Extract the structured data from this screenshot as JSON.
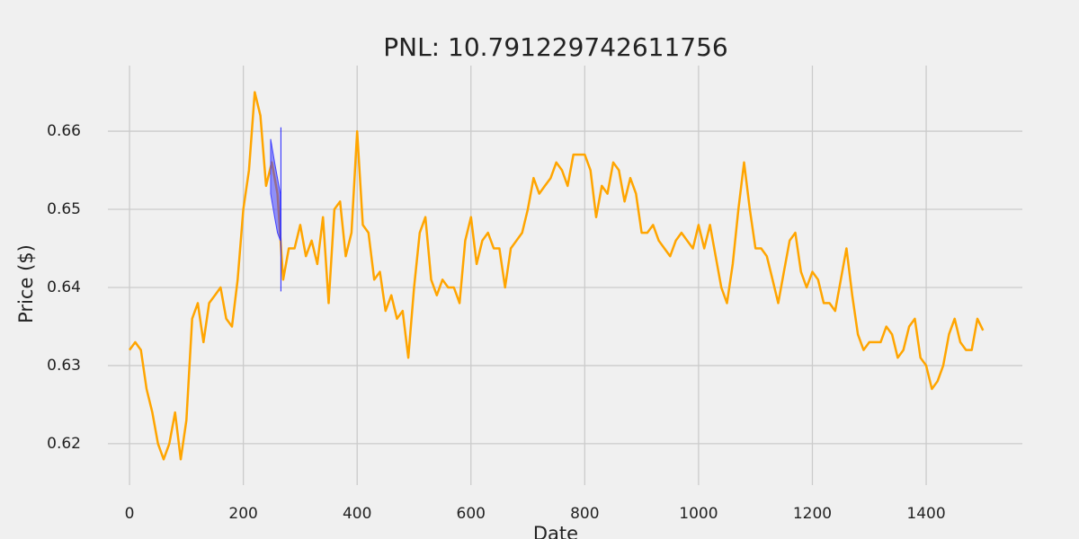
{
  "chart_data": {
    "type": "line",
    "title": "PNL: 10.791229742611756",
    "xlabel": "Date",
    "ylabel": "Price ($)",
    "x": [
      0,
      10,
      20,
      30,
      40,
      50,
      60,
      70,
      80,
      90,
      100,
      110,
      120,
      130,
      140,
      150,
      160,
      170,
      180,
      190,
      200,
      210,
      220,
      230,
      240,
      250,
      260,
      270,
      280,
      290,
      300,
      310,
      320,
      330,
      340,
      350,
      360,
      370,
      380,
      390,
      400,
      410,
      420,
      430,
      440,
      450,
      460,
      470,
      480,
      490,
      500,
      510,
      520,
      530,
      540,
      550,
      560,
      570,
      580,
      590,
      600,
      610,
      620,
      630,
      640,
      650,
      660,
      670,
      680,
      690,
      700,
      710,
      720,
      730,
      740,
      750,
      760,
      770,
      780,
      790,
      800,
      810,
      820,
      830,
      840,
      850,
      860,
      870,
      880,
      890,
      900,
      910,
      920,
      930,
      940,
      950,
      960,
      970,
      980,
      990,
      1000,
      1010,
      1020,
      1030,
      1040,
      1050,
      1060,
      1070,
      1080,
      1090,
      1100,
      1110,
      1120,
      1130,
      1140,
      1150,
      1160,
      1170,
      1180,
      1190,
      1200,
      1210,
      1220,
      1230,
      1240,
      1250,
      1260,
      1270,
      1280,
      1290,
      1300,
      1310,
      1320,
      1330,
      1340,
      1350,
      1360,
      1370,
      1380,
      1390,
      1400,
      1410,
      1420,
      1430,
      1440,
      1450,
      1460,
      1470,
      1480,
      1490,
      1500
    ],
    "values": [
      0.632,
      0.633,
      0.632,
      0.627,
      0.624,
      0.62,
      0.618,
      0.62,
      0.624,
      0.618,
      0.623,
      0.636,
      0.638,
      0.633,
      0.638,
      0.639,
      0.64,
      0.636,
      0.635,
      0.641,
      0.65,
      0.655,
      0.665,
      0.662,
      0.653,
      0.656,
      0.652,
      0.641,
      0.645,
      0.645,
      0.648,
      0.644,
      0.646,
      0.643,
      0.649,
      0.638,
      0.65,
      0.651,
      0.644,
      0.647,
      0.66,
      0.648,
      0.647,
      0.641,
      0.642,
      0.637,
      0.639,
      0.636,
      0.637,
      0.631,
      0.64,
      0.647,
      0.649,
      0.641,
      0.639,
      0.641,
      0.64,
      0.64,
      0.638,
      0.646,
      0.649,
      0.643,
      0.646,
      0.647,
      0.645,
      0.645,
      0.64,
      0.645,
      0.646,
      0.647,
      0.65,
      0.654,
      0.652,
      0.653,
      0.654,
      0.656,
      0.655,
      0.653,
      0.657,
      0.657,
      0.657,
      0.655,
      0.649,
      0.653,
      0.652,
      0.656,
      0.655,
      0.651,
      0.654,
      0.652,
      0.647,
      0.647,
      0.648,
      0.646,
      0.645,
      0.644,
      0.646,
      0.647,
      0.646,
      0.645,
      0.648,
      0.645,
      0.648,
      0.644,
      0.64,
      0.638,
      0.643,
      0.65,
      0.656,
      0.65,
      0.645,
      0.645,
      0.644,
      0.641,
      0.638,
      0.642,
      0.646,
      0.647,
      0.642,
      0.64,
      0.642,
      0.641,
      0.638,
      0.638,
      0.637,
      0.641,
      0.645,
      0.639,
      0.634,
      0.632,
      0.633,
      0.633,
      0.633,
      0.635,
      0.634,
      0.631,
      0.632,
      0.635,
      0.636,
      0.631,
      0.63,
      0.627,
      0.628,
      0.63,
      0.634,
      0.636,
      0.633,
      0.632,
      0.632,
      0.636,
      0.6345
    ],
    "color": "#ffa500",
    "band": {
      "x": [
        248,
        255,
        260,
        265
      ],
      "upper": [
        0.659,
        0.656,
        0.654,
        0.652
      ],
      "lower": [
        0.652,
        0.649,
        0.647,
        0.646
      ],
      "color": "#4040ff"
    },
    "vline": {
      "x": 266,
      "ymin": 0.6395,
      "ymax": 0.6605,
      "color": "#2020ff"
    },
    "xlim": [
      -38,
      1569
    ],
    "ylim": [
      0.6147,
      0.6684
    ],
    "xticks": [
      0,
      200,
      400,
      600,
      800,
      1000,
      1200,
      1400
    ],
    "yticks": [
      0.62,
      0.63,
      0.64,
      0.65,
      0.66
    ],
    "grid": true
  }
}
